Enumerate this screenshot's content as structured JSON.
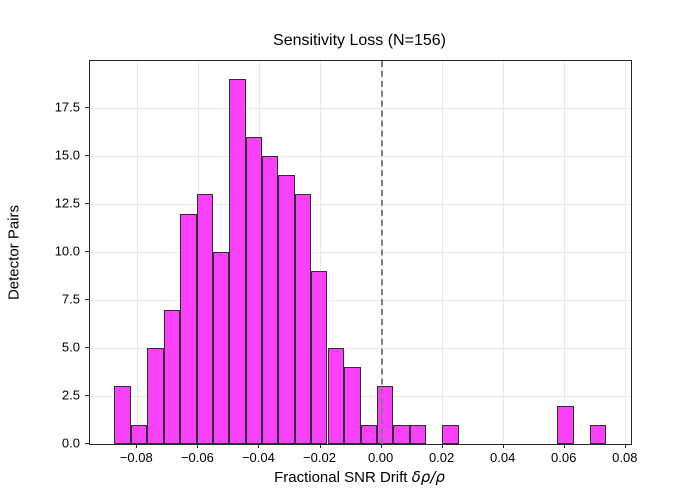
{
  "title": "Sensitivity Loss (N=156)",
  "x_axis_label_text": "Fractional SNR Drift ",
  "x_axis_label_math": "δρ/ρ",
  "y_axis_label": "Detector Pairs",
  "colors": {
    "bar_fill": "#fa41fa",
    "bar_edge": "#2e2e2e",
    "grid": "#e9e9e9",
    "spine": "#262626",
    "reference_line": "#7f7f7f",
    "background": "#ffffff"
  },
  "chart_data": {
    "type": "bar",
    "subtype": "histogram",
    "title": "Sensitivity Loss (N=156)",
    "xlabel": "Fractional SNR Drift δρ/ρ",
    "ylabel": "Detector Pairs",
    "n_total": 156,
    "grid": true,
    "legend": false,
    "bin_edges": [
      -0.0875,
      -0.0821,
      -0.0767,
      -0.0714,
      -0.066,
      -0.0606,
      -0.0552,
      -0.0499,
      -0.0445,
      -0.0391,
      -0.0338,
      -0.0284,
      -0.023,
      -0.0177,
      -0.0123,
      -0.0069,
      -0.0015,
      0.0038,
      0.0092,
      0.0146,
      0.0199,
      0.0253,
      0.0307,
      0.036,
      0.0414,
      0.0468,
      0.0522,
      0.0575,
      0.0629,
      0.0683,
      0.0736
    ],
    "counts": [
      3,
      1,
      5,
      7,
      12,
      13,
      10,
      19,
      16,
      15,
      14,
      13,
      9,
      5,
      4,
      1,
      3,
      1,
      1,
      0,
      1,
      0,
      0,
      0,
      0,
      0,
      0,
      2,
      0,
      1
    ],
    "xlim": [
      -0.0955,
      0.0817
    ],
    "ylim": [
      0,
      19.95
    ],
    "x_ticks": [
      -0.08,
      -0.06,
      -0.04,
      -0.02,
      0.0,
      0.02,
      0.04,
      0.06,
      0.08
    ],
    "x_tick_labels": [
      "−0.08",
      "−0.06",
      "−0.04",
      "−0.02",
      "0.00",
      "0.02",
      "0.04",
      "0.06",
      "0.08"
    ],
    "y_ticks": [
      0.0,
      2.5,
      5.0,
      7.5,
      10.0,
      12.5,
      15.0,
      17.5
    ],
    "y_tick_labels": [
      "0.0",
      "2.5",
      "5.0",
      "7.5",
      "10.0",
      "12.5",
      "15.0",
      "17.5"
    ],
    "reference_vline_x": 0.0
  }
}
